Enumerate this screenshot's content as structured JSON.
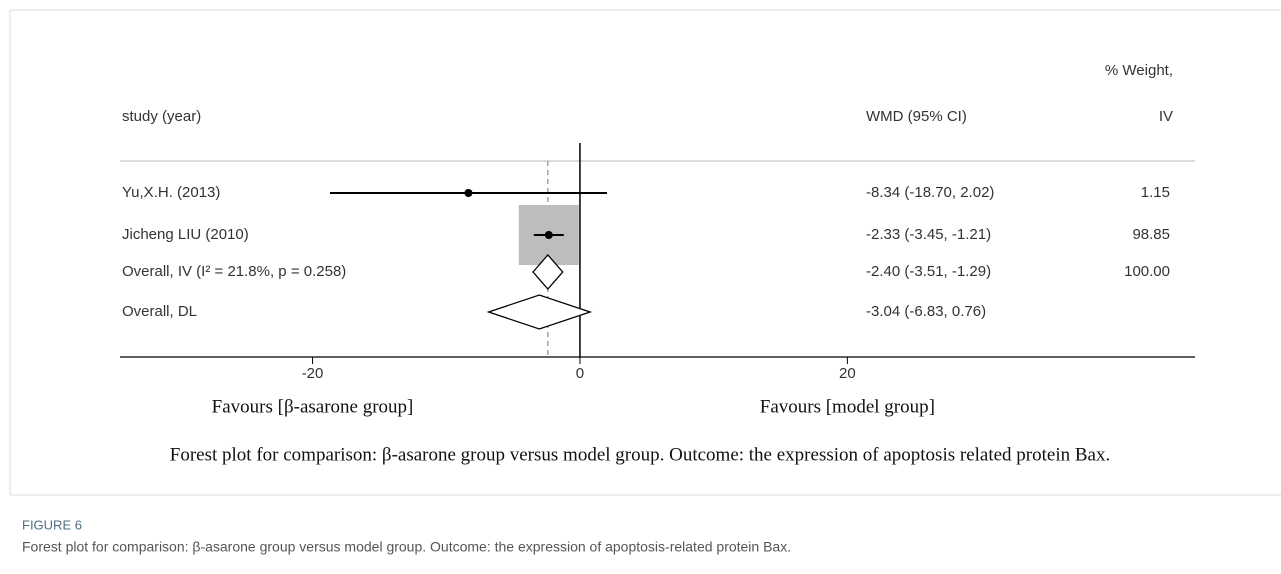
{
  "chart_data": {
    "type": "forest",
    "headers": {
      "study": "study (year)",
      "effect": "WMD (95% CI)",
      "weight": [
        "% Weight,",
        "IV"
      ]
    },
    "studies": [
      "Yu,X.H. (2013)",
      "Jicheng LIU (2010)"
    ],
    "estimates": [
      -8.34,
      -2.33
    ],
    "lower": [
      -18.7,
      -3.45
    ],
    "upper": [
      2.02,
      -1.21
    ],
    "ci_labels": [
      "-8.34 (-18.70, 2.02)",
      "-2.33 (-3.45, -1.21)"
    ],
    "weights": [
      1.15,
      98.85
    ],
    "overall": [
      {
        "name": "Overall, IV (I² = 21.8%, p = 0.258)",
        "estimate": -2.4,
        "lower": -3.51,
        "upper": -1.29,
        "ci_label": "-2.40 (-3.51, -1.29)",
        "weight": 100,
        "weight_label": "100.00"
      },
      {
        "name": "Overall, DL",
        "estimate": -3.04,
        "lower": -6.83,
        "upper": 0.76,
        "ci_label": "-3.04 (-6.83, 0.76)"
      }
    ],
    "xlim": [
      -34.4,
      46
    ],
    "xticks": [
      -20,
      0,
      20
    ],
    "x_labels": [
      "Favours [β-asarone group]",
      "Favours [model group]"
    ],
    "note": "Forest plot for comparison: β-asarone group versus model group. Outcome: the expression of apoptosis related protein Bax."
  },
  "figure": {
    "label": "FIGURE 6",
    "caption": "Forest plot for comparison: β-asarone group versus model group. Outcome: the expression of apoptosis-related protein Bax."
  }
}
